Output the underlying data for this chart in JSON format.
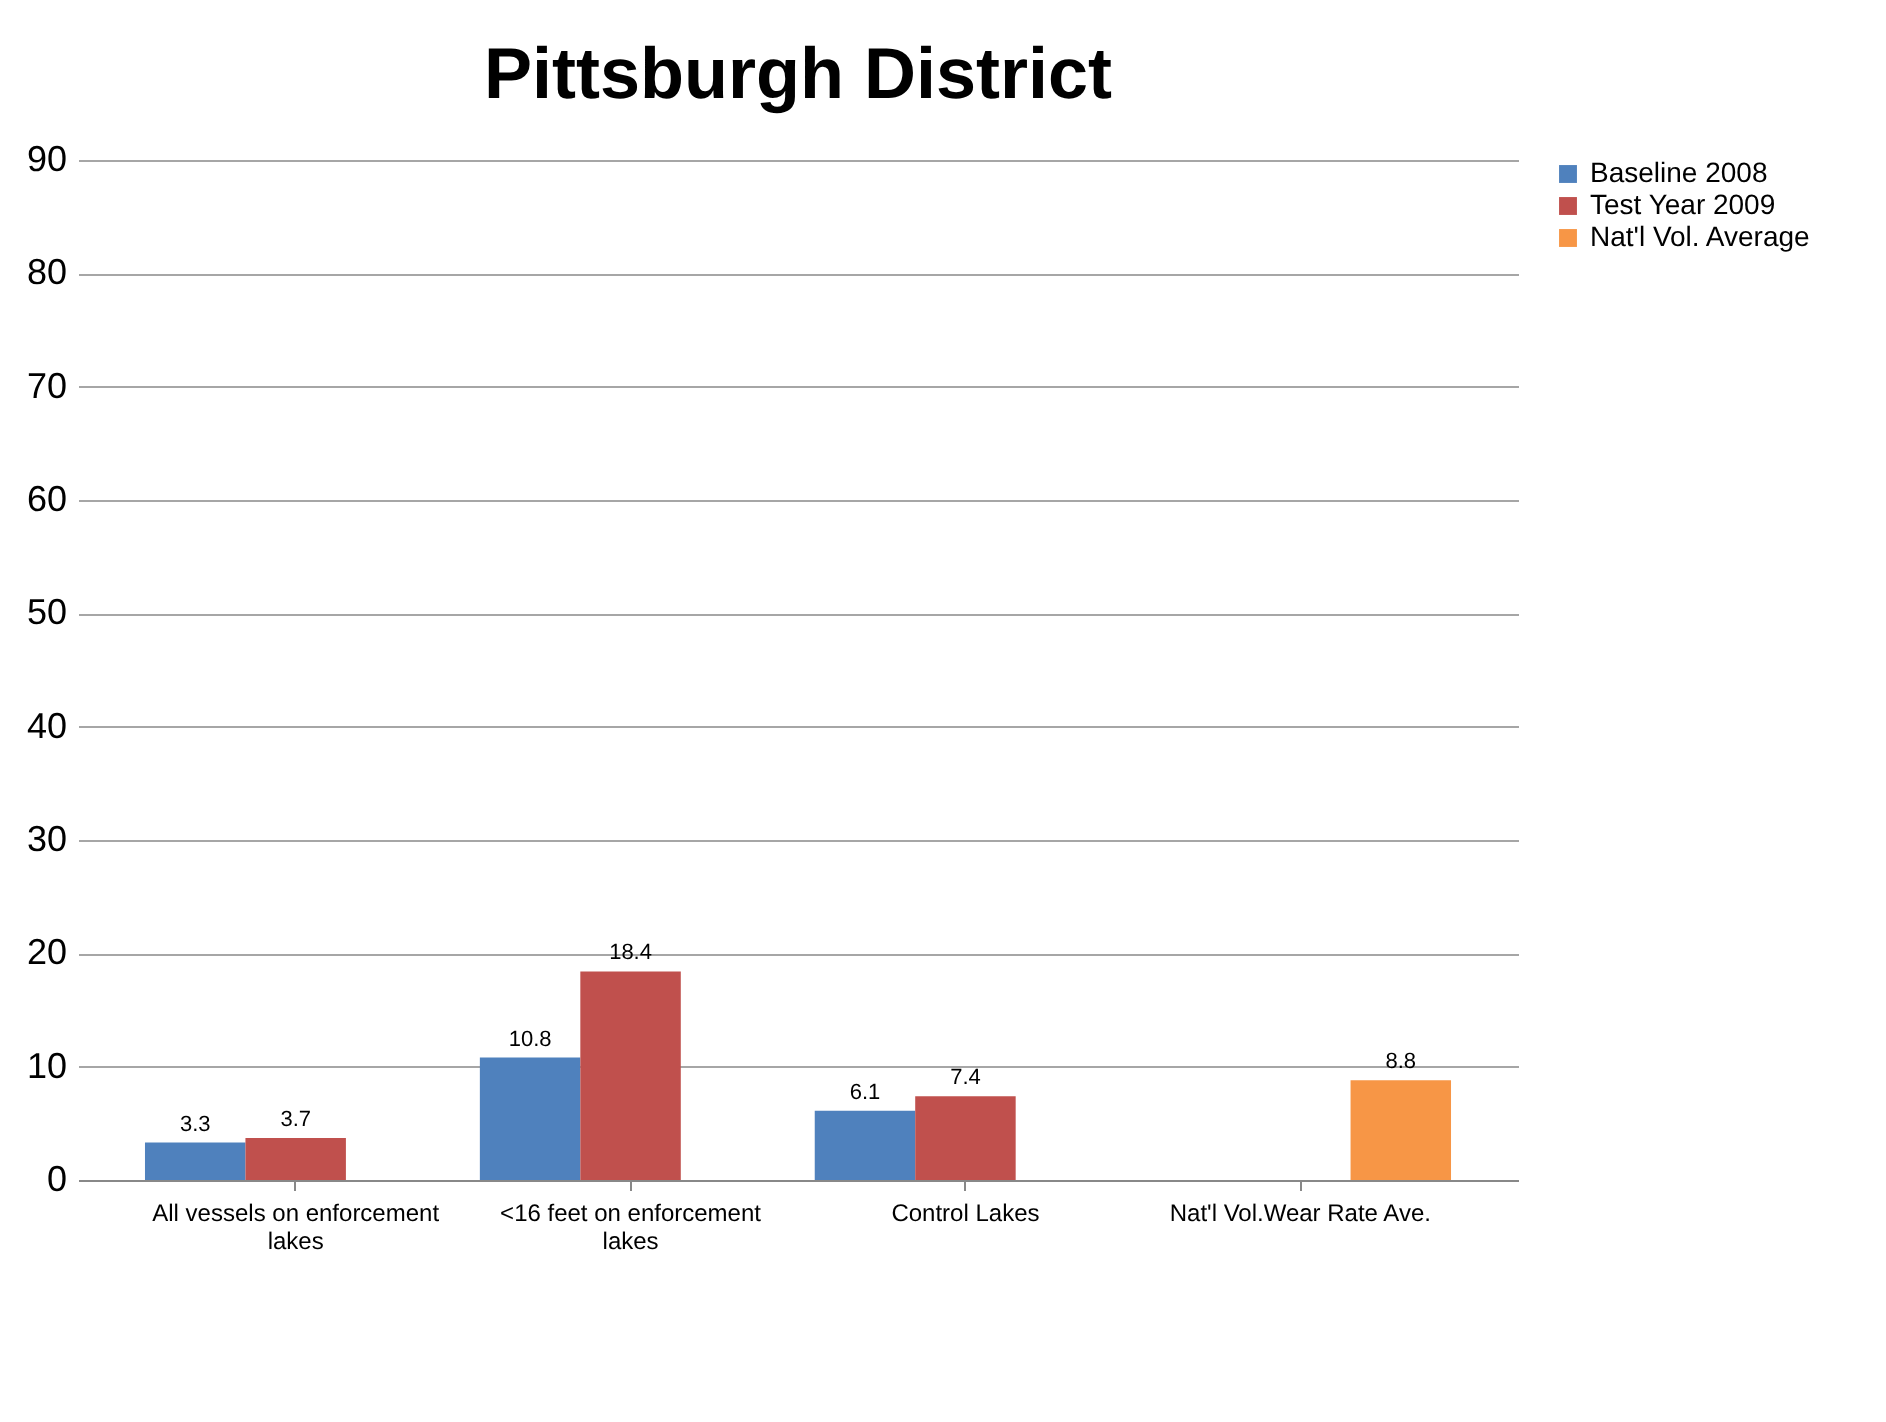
{
  "chart_data": {
    "type": "bar",
    "title": "Pittsburgh District",
    "categories": [
      "All vessels on enforcement lakes",
      "<16 feet on enforcement lakes",
      "Control Lakes",
      "Nat'l Vol.Wear Rate Ave."
    ],
    "series": [
      {
        "name": "Baseline 2008",
        "color": "#4f81bd",
        "values": [
          3.3,
          10.8,
          6.1,
          null
        ]
      },
      {
        "name": "Test Year 2009",
        "color": "#c0504d",
        "values": [
          3.7,
          18.4,
          7.4,
          null
        ]
      },
      {
        "name": "Nat'l Vol. Average",
        "color": "#f79646",
        "values": [
          null,
          null,
          null,
          8.8
        ]
      }
    ],
    "ylim": [
      0,
      90
    ],
    "yticks": [
      0,
      10,
      20,
      30,
      40,
      50,
      60,
      70,
      80,
      90
    ],
    "grid": "y",
    "legend": "right",
    "data_labels": true
  }
}
